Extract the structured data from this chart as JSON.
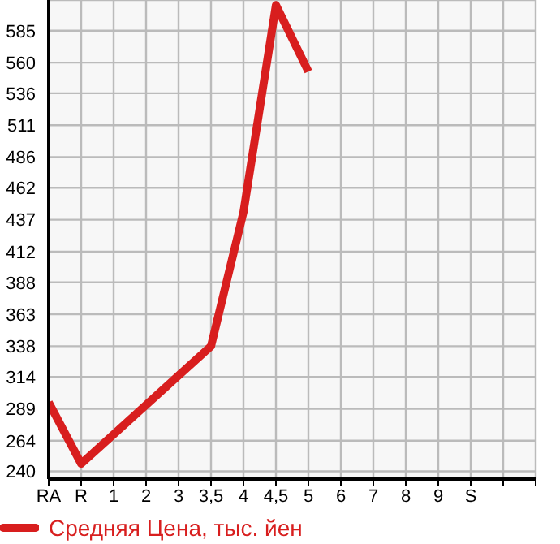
{
  "chart_data": {
    "type": "line",
    "categories": [
      "RA",
      "R",
      "1",
      "2",
      "3",
      "3,5",
      "4",
      "4,5",
      "5",
      "6",
      "7",
      "8",
      "9",
      "S",
      null,
      null
    ],
    "series": [
      {
        "name": "Средняя Цена, тыс. йен",
        "color": "#d81e1e",
        "values": [
          294,
          246,
          269,
          292,
          315,
          338,
          443,
          605,
          553,
          null,
          null,
          null,
          null,
          null,
          null,
          null
        ]
      }
    ],
    "ylim": [
      234,
      609
    ],
    "yticks": [
      240,
      264,
      289,
      314,
      338,
      363,
      388,
      412,
      437,
      462,
      486,
      511,
      536,
      560,
      585
    ],
    "grid": true,
    "legend": "bottom left",
    "marker": "none",
    "line_style": "solid"
  }
}
